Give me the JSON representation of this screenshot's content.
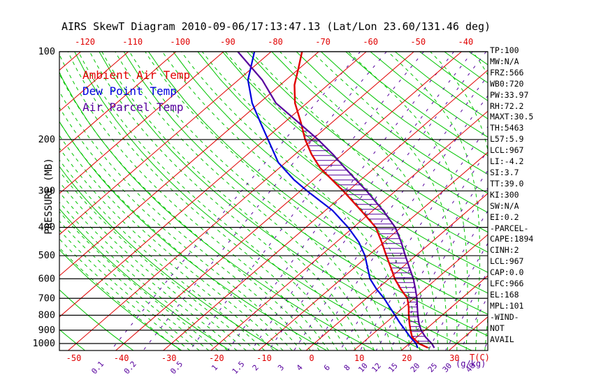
{
  "title": "AIRS SkewT Diagram 2010-09-06/17:13:47.13 (Lat/Lon 23.60/131.46 deg)",
  "colors": {
    "temperature": "#e00000",
    "dewpoint": "#0000dd",
    "parcel": "#56009d",
    "adiabat_green": "#00c400",
    "mixing_purple": "#56009d",
    "isobar_black": "#000000",
    "axis_text_black": "#000000"
  },
  "legend": {
    "items": [
      {
        "label": "Ambient Air Temp",
        "color": "temperature"
      },
      {
        "label": "Dew Point Temp",
        "color": "dewpoint"
      },
      {
        "label": "Air Parcel Temp",
        "color": "parcel"
      }
    ]
  },
  "axes": {
    "pressure_title": "PRESSURE (MB)",
    "temp_unit": "T(C)",
    "mixing_unit": "(g/kg)",
    "pressure_ticks": [
      100,
      200,
      300,
      400,
      500,
      600,
      700,
      800,
      900,
      1000
    ],
    "top_temp_labels": [
      -120,
      -110,
      -100,
      -90,
      -80,
      -70,
      -60,
      -50,
      -40
    ],
    "bottom_temp_labels": [
      -50,
      -40,
      -30,
      -20,
      -10,
      0,
      10,
      20,
      30
    ]
  },
  "stats_panel": {
    "lines": [
      "TP:100",
      "MW:N/A",
      "FRZ:566",
      "WB0:720",
      "PW:33.97",
      "RH:72.2",
      "MAXT:30.5",
      "TH:5463",
      "L57:5.9",
      "LCL:967",
      "LI:-4.2",
      "SI:3.7",
      "TT:39.0",
      "KI:300",
      "SW:N/A",
      "EI:0.2",
      "-PARCEL-",
      "CAPE:1894",
      "CINH:2",
      "LCL:967",
      "CAP:0.0",
      "LFC:966",
      "EL:168",
      "MPL:101",
      "-WIND-",
      "NOT",
      "AVAIL"
    ]
  },
  "chart_data": {
    "type": "line",
    "subtype": "skew-t log-p sounding",
    "title": "AIRS SkewT Diagram 2010-09-06/17:13:47.13 (Lat/Lon 23.60/131.46 deg)",
    "ylabel": "PRESSURE (MB)",
    "xlabel": "T(C)",
    "y_scale": "log-pressure, 100 to ~1056 mb",
    "x_axis": "temperature C, skewed 45deg, 10C grid",
    "grid": "isotherms red, dry adiabats green solid, moist adiabats green dashed, mixing ratio purple dashed, isobars black",
    "isotherms_c": {
      "min": -120,
      "max": 30,
      "step": 10
    },
    "dry_adiabats_c": {
      "min": -50,
      "max": 190,
      "step": 10
    },
    "moist_adiabats_c": {
      "min": -30,
      "max": 38,
      "step": 2
    },
    "mixing_ratio_lines_gkg": [
      0.1,
      0.2,
      0.5,
      1,
      1.5,
      2,
      3,
      4,
      6,
      8,
      10,
      12,
      15,
      20,
      25,
      30,
      40
    ],
    "mixing_ratio_labels": [
      "0.1",
      "0.2",
      "0.5",
      "1",
      "1.5",
      "2",
      "3",
      "4",
      "6",
      "8",
      "10",
      "12",
      "15",
      "20",
      "25",
      "30",
      "40"
    ],
    "series": [
      {
        "name": "Ambient Air Temp",
        "color": "temperature",
        "points_p_t": [
          [
            100,
            -73.5
          ],
          [
            115,
            -70
          ],
          [
            130,
            -67
          ],
          [
            150,
            -62.5
          ],
          [
            175,
            -56.5
          ],
          [
            200,
            -51.5
          ],
          [
            225,
            -46.5
          ],
          [
            250,
            -41.5
          ],
          [
            275,
            -36
          ],
          [
            300,
            -31
          ],
          [
            350,
            -22.5
          ],
          [
            400,
            -15.3
          ],
          [
            450,
            -10.4
          ],
          [
            500,
            -6.2
          ],
          [
            550,
            -2.3
          ],
          [
            600,
            1.2
          ],
          [
            650,
            4.9
          ],
          [
            700,
            8.6
          ],
          [
            750,
            11.0
          ],
          [
            800,
            13.0
          ],
          [
            850,
            15.0
          ],
          [
            900,
            17.0
          ],
          [
            950,
            19.0
          ],
          [
            1000,
            22.0
          ],
          [
            1035,
            25.0
          ]
        ]
      },
      {
        "name": "Dew Point Temp",
        "color": "dewpoint",
        "points_p_t": [
          [
            100,
            -83.5
          ],
          [
            125,
            -78
          ],
          [
            150,
            -71.5
          ],
          [
            175,
            -65
          ],
          [
            200,
            -59.3
          ],
          [
            240,
            -51.5
          ],
          [
            275,
            -44
          ],
          [
            300,
            -38.6
          ],
          [
            350,
            -28.5
          ],
          [
            400,
            -21.1
          ],
          [
            450,
            -15.2
          ],
          [
            500,
            -10.7
          ],
          [
            550,
            -7.2
          ],
          [
            600,
            -4.0
          ],
          [
            650,
            -0.2
          ],
          [
            700,
            3.7
          ],
          [
            750,
            7.0
          ],
          [
            800,
            10.1
          ],
          [
            850,
            13.0
          ],
          [
            900,
            15.9
          ],
          [
            950,
            18.6
          ],
          [
            1000,
            21.4
          ],
          [
            1035,
            22.8
          ]
        ]
      },
      {
        "name": "Air Parcel Temp",
        "color": "parcel",
        "points_p_t": [
          [
            100,
            -87
          ],
          [
            125,
            -75
          ],
          [
            150,
            -66.5
          ],
          [
            175,
            -57
          ],
          [
            200,
            -48.8
          ],
          [
            225,
            -42
          ],
          [
            250,
            -36.3
          ],
          [
            275,
            -31
          ],
          [
            300,
            -26.1
          ],
          [
            350,
            -17.9
          ],
          [
            400,
            -11.2
          ],
          [
            450,
            -6.3
          ],
          [
            500,
            -2.2
          ],
          [
            550,
            1.6
          ],
          [
            600,
            5.1
          ],
          [
            650,
            8.0
          ],
          [
            700,
            10.6
          ],
          [
            750,
            12.8
          ],
          [
            800,
            14.9
          ],
          [
            850,
            17.0
          ],
          [
            900,
            19.2
          ],
          [
            950,
            21.8
          ],
          [
            1000,
            24.7
          ],
          [
            1035,
            26.3
          ]
        ]
      }
    ],
    "cape_hatch": {
      "between": [
        "Ambient Air Temp",
        "Air Parcel Temp"
      ],
      "from_mb": 180,
      "to_mb": 1020,
      "style": "horizontal purple lines"
    }
  }
}
